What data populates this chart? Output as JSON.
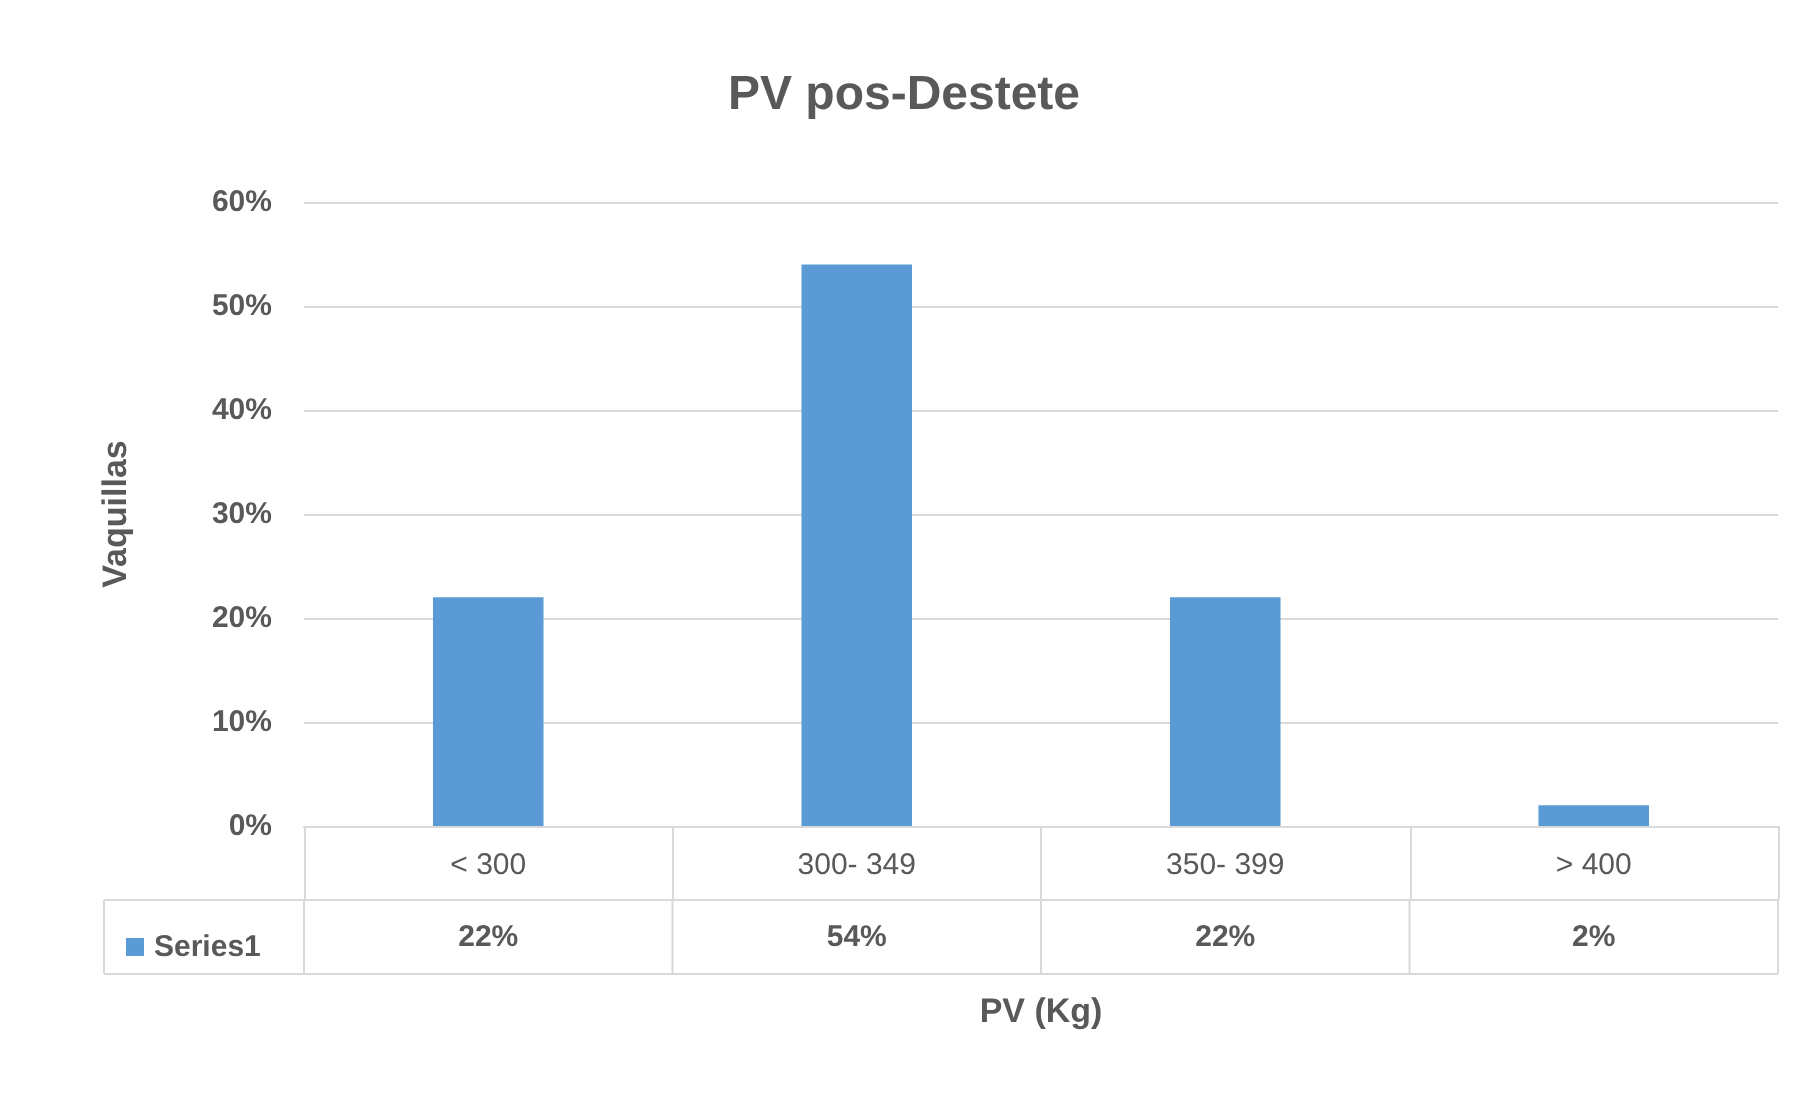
{
  "chart_data": {
    "type": "bar",
    "title": "PV pos-Destete",
    "xlabel": "PV (Kg)",
    "ylabel": "Vaquillas",
    "categories": [
      "< 300",
      "300- 349",
      "350- 399",
      "> 400"
    ],
    "series": [
      {
        "name": "Series1",
        "color": "#5b9bd5",
        "values": [
          22,
          54,
          22,
          2
        ],
        "value_labels": [
          "22%",
          "54%",
          "22%",
          "2%"
        ]
      }
    ],
    "ylim": [
      0,
      60
    ],
    "yticks": [
      {
        "value": 0,
        "label": "0%"
      },
      {
        "value": 10,
        "label": "10%"
      },
      {
        "value": 20,
        "label": "20%"
      },
      {
        "value": 30,
        "label": "30%"
      },
      {
        "value": 40,
        "label": "40%"
      },
      {
        "value": 50,
        "label": "50%"
      },
      {
        "value": 60,
        "label": "60%"
      }
    ],
    "grid": "y",
    "legend": "bottom left",
    "data_labels": true
  }
}
